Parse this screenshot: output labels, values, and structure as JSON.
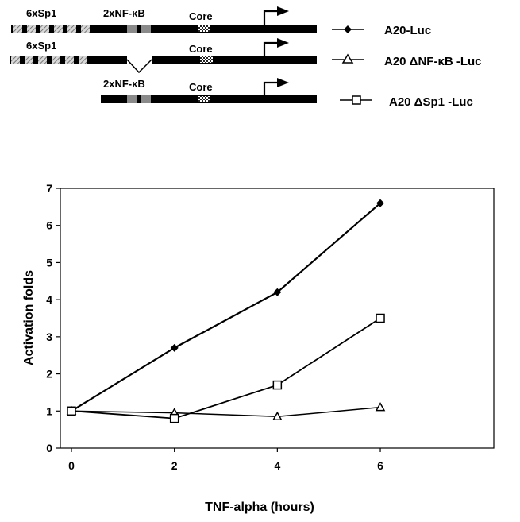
{
  "diagram": {
    "constructs": [
      {
        "name": "A20-Luc",
        "elements": [
          "6xSp1",
          "2xNF-κB",
          "Core"
        ],
        "sp1_boxes": 6,
        "nfkb_boxes": 2,
        "deletion": ""
      },
      {
        "name": "A20 ΔNF-κB -Luc",
        "elements": [
          "6xSp1",
          "",
          "Core"
        ],
        "sp1_boxes": 6,
        "nfkb_boxes": 0,
        "deletion": "NF-κB"
      },
      {
        "name": "A20 ΔSp1 -Luc",
        "elements": [
          "",
          "2xNF-κB",
          "Core"
        ],
        "sp1_boxes": 0,
        "nfkb_boxes": 2,
        "deletion": "Sp1"
      }
    ]
  },
  "chart_data": {
    "type": "line",
    "title": "",
    "xlabel": "TNF-alpha (hours)",
    "ylabel": "Activation folds",
    "x": [
      0,
      2,
      4,
      6
    ],
    "xticks": [
      0,
      2,
      4,
      6
    ],
    "yticks": [
      0,
      1,
      2,
      3,
      4,
      5,
      6,
      7
    ],
    "xlim": [
      0,
      8
    ],
    "ylim": [
      0,
      7
    ],
    "grid": false,
    "legend": "top-right",
    "series": [
      {
        "name": "A20-Luc",
        "marker": "diamond",
        "values": [
          1.0,
          2.7,
          4.2,
          6.6
        ]
      },
      {
        "name": "A20 ΔNF-κB -Luc",
        "marker": "triangle",
        "values": [
          1.0,
          0.95,
          0.85,
          1.1
        ]
      },
      {
        "name": "A20 ΔSp1 -Luc",
        "marker": "square",
        "values": [
          1.0,
          0.8,
          1.7,
          3.5
        ]
      }
    ],
    "colors": {
      "line": "#000000",
      "background": "#ffffff"
    }
  }
}
